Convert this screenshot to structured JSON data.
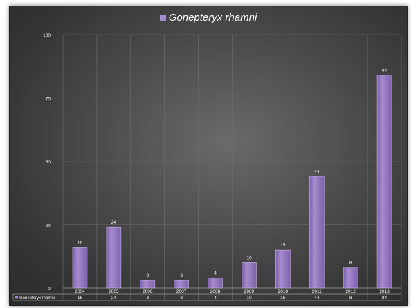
{
  "chart_data": {
    "type": "bar",
    "title": "Gonepteryx rhamni",
    "categories": [
      "2004",
      "2005",
      "2006",
      "2007",
      "2008",
      "2009",
      "2010",
      "2011",
      "2012",
      "2013"
    ],
    "series": [
      {
        "name": "Gonepteryx rhamni",
        "values": [
          16,
          24,
          3,
          3,
          4,
          10,
          15,
          44,
          8,
          84
        ]
      }
    ],
    "ylim": [
      0,
      100
    ],
    "yticks": [
      "0",
      "25",
      "50",
      "75",
      "100"
    ],
    "grid": true,
    "legend_position": "top",
    "data_table": true,
    "colors": {
      "bar": "#a78bd0",
      "bar_dark": "#7e62aa",
      "grid": "#6f6f6f",
      "text": "#ffffff"
    }
  }
}
